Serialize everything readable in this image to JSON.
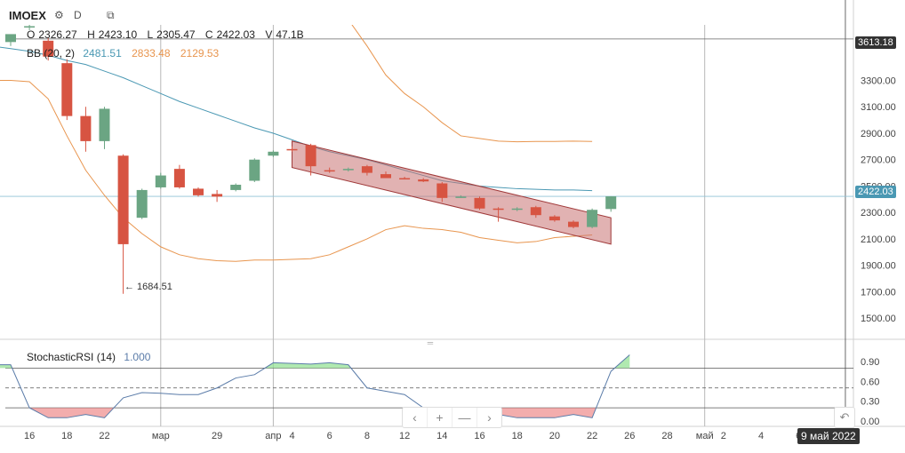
{
  "header": {
    "symbol": "IMOEX",
    "interval": "D",
    "icons": [
      "gear-icon",
      "compare-icon"
    ]
  },
  "ohlc": {
    "o_label": "O",
    "o": "2326.27",
    "h_label": "H",
    "h": "2423.10",
    "l_label": "L",
    "l": "2305.47",
    "c_label": "C",
    "c": "2422.03",
    "v_label": "V",
    "v": "47.1B"
  },
  "bb": {
    "label": "BB (20, 2)",
    "basis": "2481.51",
    "upper": "2833.48",
    "lower": "2129.53"
  },
  "stoch": {
    "label": "StochasticRSI (14)",
    "value": "1.000"
  },
  "tags": {
    "max_price": "3613.18",
    "last_price": "2422.03",
    "min_label": "← 1684.51",
    "crosshair_date": "9 май 2022"
  },
  "colors": {
    "up": "#6ba583",
    "down": "#d75442",
    "basis": "#4a98b3",
    "band": "#e8954e",
    "stoch": "#5b7ca9",
    "channel_fill": "#c97373",
    "channel_stroke": "#a03a3a"
  },
  "toolbar": {
    "icons": [
      "chevron-left-icon",
      "plus-icon",
      "minus-icon",
      "chevron-right-icon"
    ],
    "labels": [
      "‹",
      "+",
      "—",
      "›"
    ],
    "back_label": "↶"
  },
  "chart_data": {
    "type": "candlestick",
    "price_axis": {
      "ticks": [
        3300,
        3100,
        2900,
        2700,
        2500,
        2300,
        2100,
        1900,
        1700,
        1500
      ],
      "tick_labels": [
        "3300.00",
        "3100.00",
        "2900.00",
        "2700.00",
        "2500.00",
        "2300.00",
        "2100.00",
        "1900.00",
        "1700.00",
        "1500.00"
      ],
      "ylim": [
        1340,
        3720
      ]
    },
    "x_axis": {
      "labels": [
        {
          "i": 1,
          "t": "16"
        },
        {
          "i": 3,
          "t": "18"
        },
        {
          "i": 5,
          "t": "22"
        },
        {
          "i": 8,
          "t": "мар"
        },
        {
          "i": 11,
          "t": "29"
        },
        {
          "i": 14,
          "t": "апр"
        },
        {
          "i": 15,
          "t": "4"
        },
        {
          "i": 17,
          "t": "6"
        },
        {
          "i": 19,
          "t": "8"
        },
        {
          "i": 21,
          "t": "12"
        },
        {
          "i": 23,
          "t": "14"
        },
        {
          "i": 25,
          "t": "16"
        },
        {
          "i": 27,
          "t": "18"
        },
        {
          "i": 29,
          "t": "20"
        },
        {
          "i": 31,
          "t": "22"
        },
        {
          "i": 33,
          "t": "26"
        },
        {
          "i": 35,
          "t": "28"
        },
        {
          "i": 37,
          "t": "май"
        },
        {
          "i": 38,
          "t": "2"
        },
        {
          "i": 40,
          "t": "4"
        },
        {
          "i": 42,
          "t": "6"
        }
      ],
      "separators": [
        8,
        14,
        37
      ],
      "crosshair_i": 44.5
    },
    "candles": [
      {
        "o": 3590,
        "h": 3630,
        "l": 3560,
        "c": 3650
      },
      {
        "o": 3700,
        "h": 3720,
        "l": 3680,
        "c": 3710
      },
      {
        "o": 3600,
        "h": 3620,
        "l": 3450,
        "c": 3480
      },
      {
        "o": 3430,
        "h": 3460,
        "l": 3000,
        "c": 3030
      },
      {
        "o": 3030,
        "h": 3100,
        "l": 2760,
        "c": 2840
      },
      {
        "o": 2840,
        "h": 3100,
        "l": 2780,
        "c": 3085
      },
      {
        "o": 2730,
        "h": 2740,
        "l": 1684.51,
        "c": 2060
      },
      {
        "o": 2260,
        "h": 2480,
        "l": 2250,
        "c": 2470
      },
      {
        "o": 2490,
        "h": 2600,
        "l": 2480,
        "c": 2580
      },
      {
        "o": 2630,
        "h": 2660,
        "l": 2480,
        "c": 2490
      },
      {
        "o": 2480,
        "h": 2490,
        "l": 2420,
        "c": 2430
      },
      {
        "o": 2440,
        "h": 2470,
        "l": 2380,
        "c": 2420
      },
      {
        "o": 2470,
        "h": 2520,
        "l": 2460,
        "c": 2510
      },
      {
        "o": 2540,
        "h": 2710,
        "l": 2530,
        "c": 2700
      },
      {
        "o": 2730,
        "h": 2770,
        "l": 2720,
        "c": 2760
      },
      {
        "o": 2780,
        "h": 2800,
        "l": 2760,
        "c": 2770
      },
      {
        "o": 2810,
        "h": 2820,
        "l": 2580,
        "c": 2650
      },
      {
        "o": 2620,
        "h": 2640,
        "l": 2600,
        "c": 2610
      },
      {
        "o": 2625,
        "h": 2640,
        "l": 2610,
        "c": 2630
      },
      {
        "o": 2650,
        "h": 2660,
        "l": 2580,
        "c": 2600
      },
      {
        "o": 2590,
        "h": 2610,
        "l": 2560,
        "c": 2560
      },
      {
        "o": 2560,
        "h": 2570,
        "l": 2550,
        "c": 2550
      },
      {
        "o": 2550,
        "h": 2560,
        "l": 2530,
        "c": 2535
      },
      {
        "o": 2520,
        "h": 2530,
        "l": 2380,
        "c": 2410
      },
      {
        "o": 2420,
        "h": 2430,
        "l": 2410,
        "c": 2420
      },
      {
        "o": 2410,
        "h": 2420,
        "l": 2320,
        "c": 2330
      },
      {
        "o": 2330,
        "h": 2340,
        "l": 2230,
        "c": 2320
      },
      {
        "o": 2330,
        "h": 2340,
        "l": 2310,
        "c": 2330
      },
      {
        "o": 2340,
        "h": 2350,
        "l": 2260,
        "c": 2280
      },
      {
        "o": 2270,
        "h": 2280,
        "l": 2230,
        "c": 2240
      },
      {
        "o": 2230,
        "h": 2240,
        "l": 2180,
        "c": 2190
      },
      {
        "o": 2190,
        "h": 2330,
        "l": 2180,
        "c": 2320
      },
      {
        "o": 2326.27,
        "h": 2423.1,
        "l": 2305.47,
        "c": 2422.03
      }
    ],
    "candle_start_i": 0,
    "bb_basis": [
      3560,
      3540,
      3520,
      3490,
      3450,
      3420,
      3370,
      3320,
      3260,
      3200,
      3140,
      3090,
      3040,
      2990,
      2940,
      2900,
      2850,
      2800,
      2760,
      2730,
      2700,
      2660,
      2620,
      2580,
      2540,
      2520,
      2500,
      2490,
      2480,
      2475,
      2470,
      2470,
      2465
    ],
    "bb_upper": [
      3900,
      3900,
      3900,
      3900,
      3900,
      3900,
      3900,
      3900,
      3900,
      3900,
      3900,
      3900,
      3900,
      3900,
      3900,
      3900,
      3900,
      3900,
      3900,
      3760,
      3560,
      3340,
      3200,
      3100,
      2980,
      2880,
      2860,
      2840,
      2835,
      2838,
      2838,
      2840,
      2838
    ],
    "bb_lower": [
      3300,
      3300,
      3290,
      3160,
      2880,
      2620,
      2430,
      2260,
      2140,
      2040,
      1980,
      1950,
      1935,
      1930,
      1940,
      1940,
      1945,
      1950,
      1980,
      2040,
      2100,
      2170,
      2200,
      2180,
      2170,
      2150,
      2110,
      2090,
      2070,
      2080,
      2110,
      2120,
      2130
    ],
    "bb_start_i": -1,
    "channel": {
      "x1": 15,
      "x2": 32,
      "top1": 2840,
      "top2": 2260,
      "bot1": 2640,
      "bot2": 2060
    },
    "stoch_axis": {
      "ticks": [
        0.9,
        0.6,
        0.3,
        0.0
      ],
      "tick_labels": [
        "0.90",
        "0.60",
        "0.30",
        "0.00"
      ],
      "ylim": [
        -0.08,
        1.1
      ],
      "upper": 0.8,
      "mid": 0.5,
      "lower": 0.2
    },
    "stoch": [
      0.6,
      0.85,
      0.85,
      0.2,
      0.05,
      0.05,
      0.1,
      0.05,
      0.35,
      0.43,
      0.42,
      0.4,
      0.4,
      0.5,
      0.65,
      0.7,
      0.88,
      0.87,
      0.86,
      0.88,
      0.85,
      0.5,
      0.45,
      0.4,
      0.2,
      0.15,
      0.2,
      0.15,
      0.1,
      0.05,
      0.05,
      0.05,
      0.1,
      0.05,
      0.75,
      1.0
    ],
    "stoch_start_i": -2
  }
}
